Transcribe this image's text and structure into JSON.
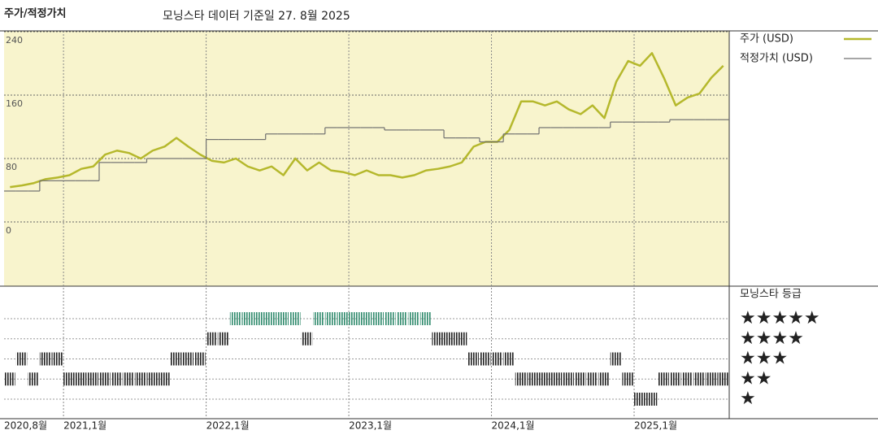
{
  "chart_data": {
    "type": "line",
    "title": "주가/적정가치",
    "subtitle": "모닝스타 데이터 기준일 27. 8월 2025",
    "x": [
      "2020-08",
      "2020-09",
      "2020-10",
      "2020-11",
      "2020-12",
      "2021-01",
      "2021-02",
      "2021-03",
      "2021-04",
      "2021-05",
      "2021-06",
      "2021-07",
      "2021-08",
      "2021-09",
      "2021-10",
      "2021-11",
      "2021-12",
      "2022-01",
      "2022-02",
      "2022-03",
      "2022-04",
      "2022-05",
      "2022-06",
      "2022-07",
      "2022-08",
      "2022-09",
      "2022-10",
      "2022-11",
      "2022-12",
      "2023-01",
      "2023-02",
      "2023-03",
      "2023-04",
      "2023-05",
      "2023-06",
      "2023-07",
      "2023-08",
      "2023-09",
      "2023-10",
      "2023-11",
      "2023-12",
      "2024-01",
      "2024-02",
      "2024-03",
      "2024-04",
      "2024-05",
      "2024-06",
      "2024-07",
      "2024-08",
      "2024-09",
      "2024-10",
      "2024-11",
      "2024-12",
      "2025-01",
      "2025-02",
      "2025-03",
      "2025-04",
      "2025-05",
      "2025-06",
      "2025-07",
      "2025-08"
    ],
    "series": [
      {
        "name": "주가 (USD)",
        "color": "#b5b82c",
        "values": [
          44,
          46,
          49,
          54,
          56,
          59,
          67,
          70,
          85,
          90,
          87,
          80,
          90,
          95,
          106,
          95,
          85,
          77,
          75,
          80,
          70,
          65,
          70,
          59,
          80,
          65,
          75,
          65,
          63,
          59,
          65,
          59,
          59,
          56,
          59,
          65,
          67,
          70,
          75,
          95,
          101,
          101,
          116,
          152,
          152,
          147,
          152,
          142,
          136,
          147,
          131,
          177,
          203,
          197,
          213,
          182,
          147,
          157,
          162,
          182,
          197
        ]
      },
      {
        "name": "적정가치 (USD)",
        "color": "#707070",
        "step": true,
        "values": [
          39,
          39,
          39,
          52,
          52,
          52,
          52,
          52,
          75,
          75,
          75,
          75,
          80,
          80,
          80,
          80,
          80,
          104,
          104,
          104,
          104,
          104,
          111,
          111,
          111,
          111,
          111,
          119,
          119,
          119,
          119,
          119,
          116,
          116,
          116,
          116,
          116,
          106,
          106,
          106,
          101,
          101,
          111,
          111,
          111,
          119,
          119,
          119,
          119,
          119,
          119,
          126,
          126,
          126,
          126,
          126,
          129,
          129,
          129,
          129,
          129
        ]
      }
    ],
    "xticks": [
      {
        "value": "2020-08",
        "label": "2020,8월"
      },
      {
        "value": "2021-01",
        "label": "2021,1월"
      },
      {
        "value": "2022-01",
        "label": "2022,1월"
      },
      {
        "value": "2023-01",
        "label": "2023,1월"
      },
      {
        "value": "2024-01",
        "label": "2024,1월"
      },
      {
        "value": "2025-01",
        "label": "2025,1월"
      }
    ],
    "ylim": [
      -81,
      241
    ],
    "yticks": [
      0,
      80,
      160,
      240
    ],
    "grid": true,
    "rating": {
      "title": "모닝스타 등급",
      "levels": [
        5,
        4,
        3,
        2,
        1
      ],
      "level_labels": [
        "★★★★★",
        "★★★★",
        "★★★",
        "★★",
        "★"
      ],
      "level_colors": [
        "#2f8a6c",
        "#222222",
        "#222222",
        "#222222",
        "#222222"
      ],
      "values": [
        2,
        3,
        2,
        3,
        3,
        2,
        2,
        2,
        2,
        2,
        2,
        2,
        2,
        2,
        3,
        3,
        3,
        4,
        4,
        5,
        5,
        5,
        5,
        5,
        5,
        4,
        5,
        5,
        5,
        5,
        5,
        5,
        5,
        5,
        5,
        5,
        4,
        4,
        4,
        3,
        3,
        3,
        3,
        2,
        2,
        2,
        2,
        2,
        2,
        2,
        2,
        3,
        2,
        1,
        1,
        2,
        2,
        2,
        2,
        2,
        2
      ]
    }
  }
}
